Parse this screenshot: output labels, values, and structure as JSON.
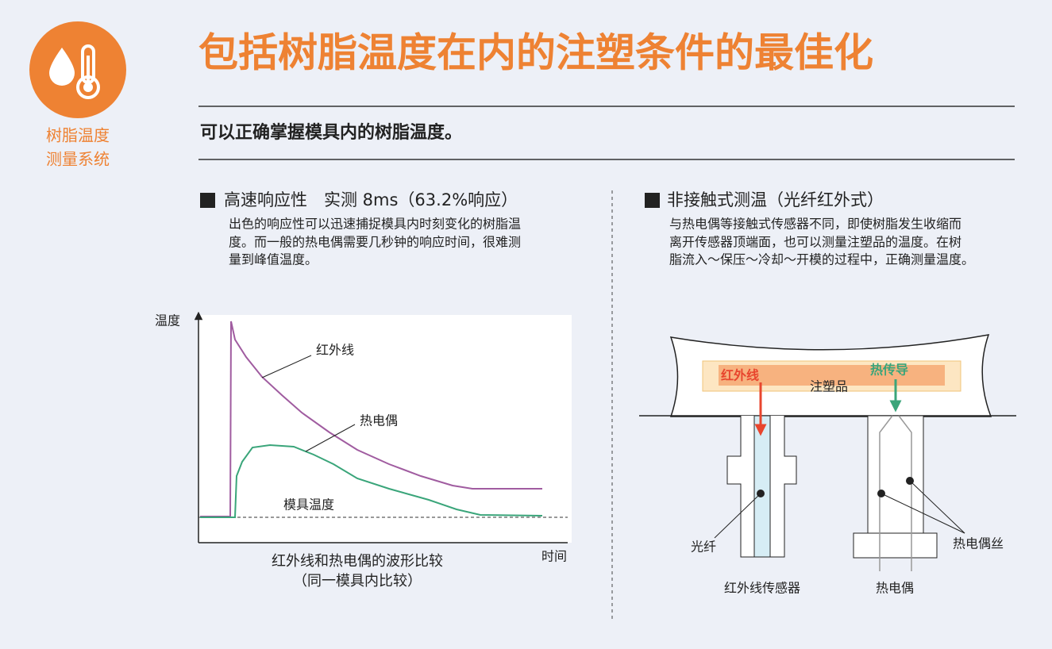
{
  "badge": {
    "lines": [
      "树脂温度",
      "测量系统"
    ]
  },
  "header": {
    "title": "包括树脂温度在内的注塑条件的最佳化",
    "subtitle": "可以正确掌握模具内的树脂温度。"
  },
  "left": {
    "heading": "高速响应性　实测 8ms（63.2%响应）",
    "body": [
      "出色的响应性可以迅速捕捉模具内时刻变化的树脂温",
      "度。而一般的热电偶需要几秒钟的响应时间，很难测",
      "量到峰值温度。"
    ],
    "figure": {
      "y_label": "温度",
      "x_label": "时间",
      "infrared": "红外线",
      "thermocouple": "热电偶",
      "mold_temp": "模具温度",
      "caption": [
        "红外线和热电偶的波形比较",
        "（同一模具内比较）"
      ]
    }
  },
  "right": {
    "heading": "非接触式测温（光纤红外式）",
    "body": [
      "与热电偶等接触式传感器不同，即使树脂发生收缩而",
      "离开传感器顶端面，也可以测量注塑品的温度。在树",
      "脂流入～保压～冷却～开模的过程中，正确测量温度。"
    ],
    "figure": {
      "infrared": "红外线",
      "heat_conduction": "热传导",
      "molded_part": "注塑品",
      "fiber": "光纤",
      "thermocouple_wire": "热电偶丝",
      "ir_sensor": "红外线传感器",
      "thermocouple": "热电偶"
    }
  }
}
